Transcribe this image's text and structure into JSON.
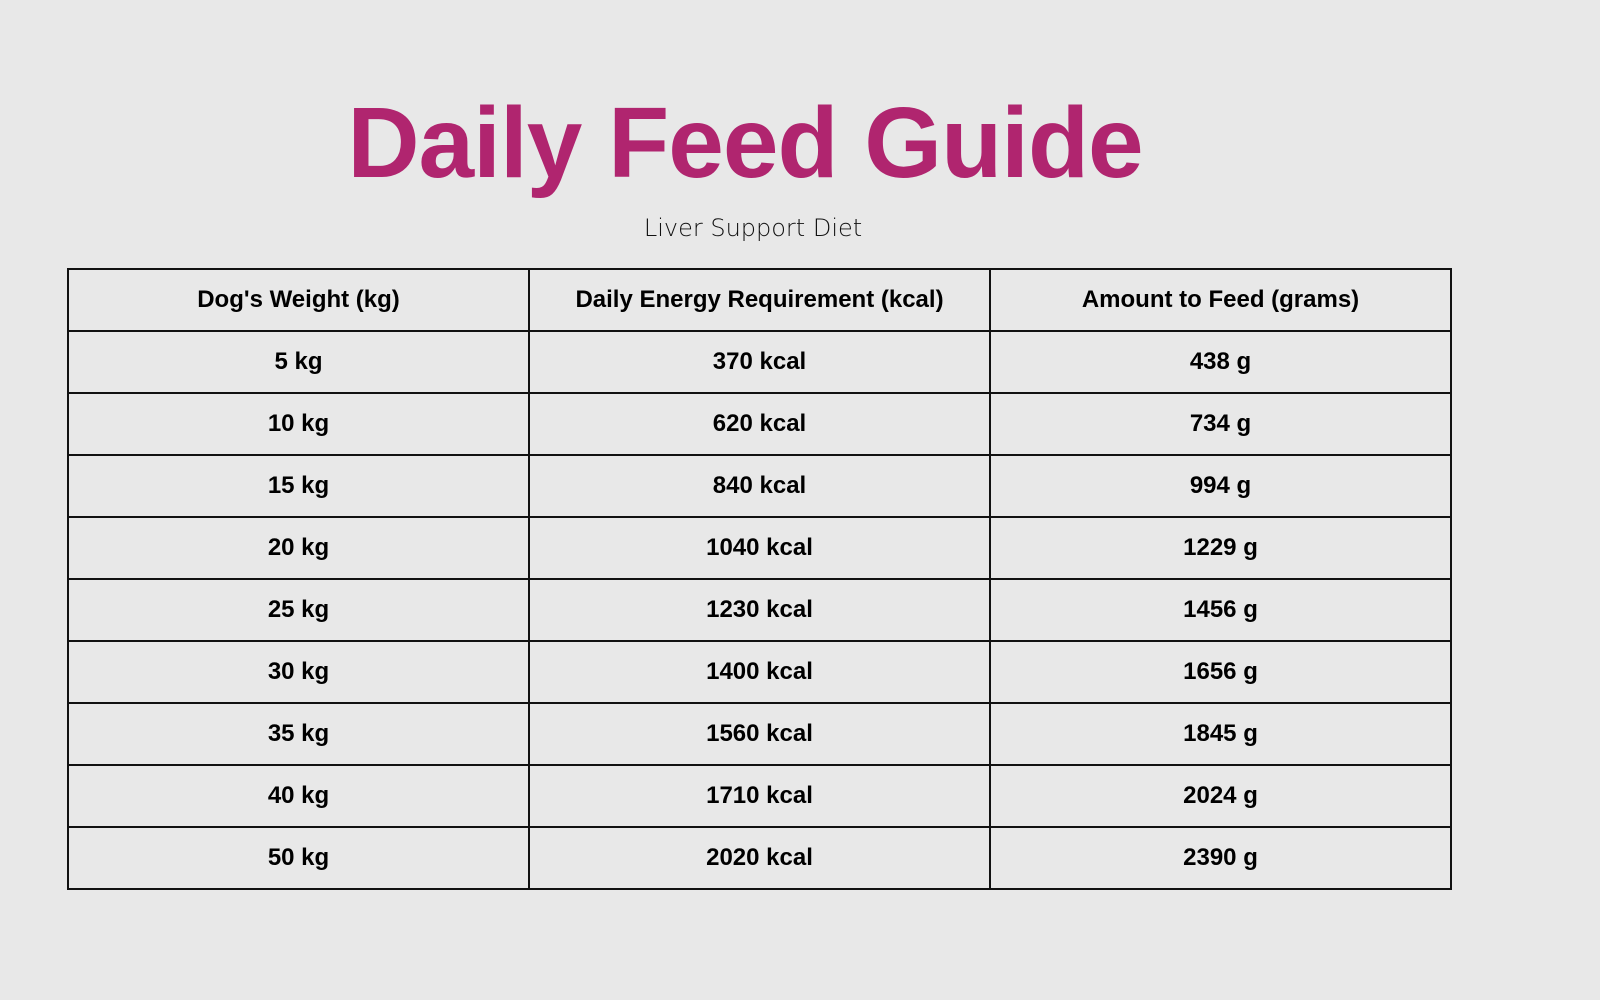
{
  "title": "Daily Feed Guide",
  "subtitle": "Liver Support Diet",
  "title_color": "#b0256f",
  "table": {
    "headers": [
      "Dog's Weight (kg)",
      "Daily Energy Requirement (kcal)",
      "Amount to Feed (grams)"
    ],
    "rows": [
      [
        "5 kg",
        "370 kcal",
        "438 g"
      ],
      [
        "10 kg",
        "620 kcal",
        "734 g"
      ],
      [
        "15 kg",
        "840 kcal",
        "994 g"
      ],
      [
        "20 kg",
        "1040 kcal",
        "1229 g"
      ],
      [
        "25 kg",
        "1230 kcal",
        "1456 g"
      ],
      [
        "30 kg",
        "1400 kcal",
        "1656 g"
      ],
      [
        "35 kg",
        "1560 kcal",
        "1845 g"
      ],
      [
        "40 kg",
        "1710 kcal",
        "2024 g"
      ],
      [
        "50 kg",
        "2020 kcal",
        "2390 g"
      ]
    ]
  }
}
